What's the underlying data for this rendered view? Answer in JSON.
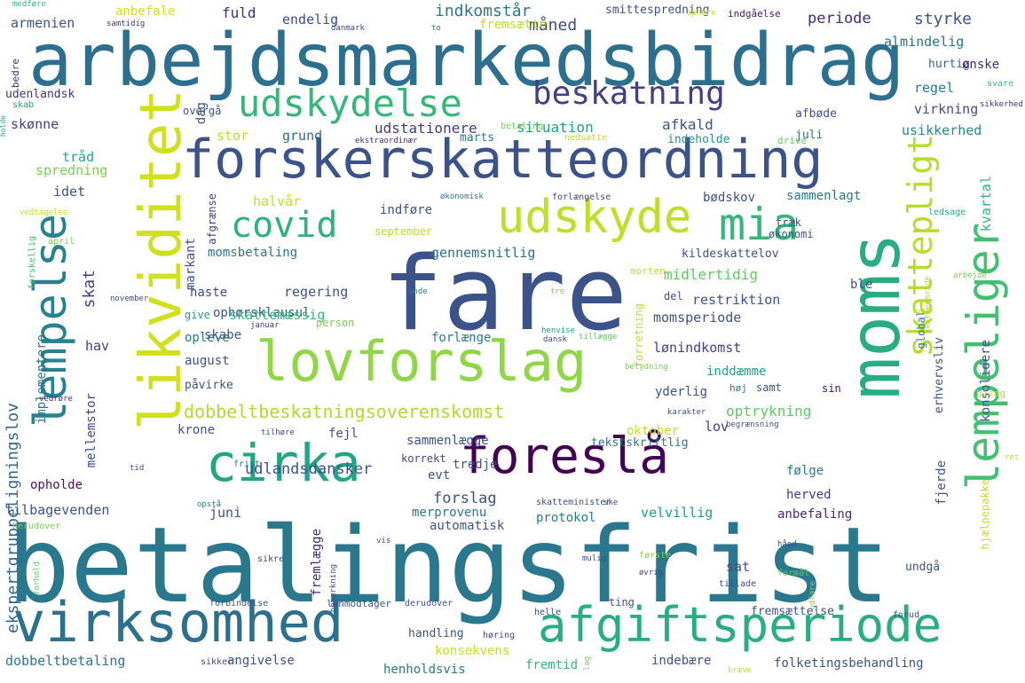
{
  "words": [
    {
      "t": "betalingsfrist",
      "c": "#2a788e"
    },
    {
      "t": "fare",
      "c": "#3b528b"
    },
    {
      "t": "arbejdsmarkedsbidrag",
      "c": "#2c6f8e"
    },
    {
      "t": "forskerskatteordning",
      "c": "#3b528b"
    },
    {
      "t": "moms",
      "c": "#27ad81"
    },
    {
      "t": "likviditet",
      "c": "#d0e11c"
    },
    {
      "t": "lovforslag",
      "c": "#8fd744"
    },
    {
      "t": "foreslå",
      "c": "#440154"
    },
    {
      "t": "cirka",
      "c": "#21a685"
    },
    {
      "t": "virksomhed",
      "c": "#2d708e"
    },
    {
      "t": "afgiftsperiode",
      "c": "#28ae80"
    },
    {
      "t": "udskyde",
      "c": "#bddf26"
    },
    {
      "t": "mia",
      "c": "#35b779"
    },
    {
      "t": "lempeliger",
      "c": "#43bf71"
    },
    {
      "t": "lempelse",
      "c": "#26828e"
    },
    {
      "t": "udskydelse",
      "c": "#35b779"
    },
    {
      "t": "beskatning",
      "c": "#433e85"
    },
    {
      "t": "covid",
      "c": "#2db27d"
    },
    {
      "t": "skattepligt",
      "c": "#b5de2b"
    },
    {
      "t": "dobbeltbeskatningsoverenskomst",
      "c": "#addc30"
    },
    {
      "t": "ekspertgruppeligningslov",
      "c": "#31688e"
    },
    {
      "t": "indkomstår",
      "c": "#2a788e"
    },
    {
      "t": "måned",
      "c": "#3e4989"
    },
    {
      "t": "styrke",
      "c": "#3b528b"
    },
    {
      "t": "periode",
      "c": "#482878"
    },
    {
      "t": "almindelig",
      "c": "#2c728e"
    },
    {
      "t": "armenien",
      "c": "#3b528b"
    },
    {
      "t": "endelig",
      "c": "#3e4a89"
    },
    {
      "t": "fuld",
      "c": "#472d7b"
    },
    {
      "t": "anbefale",
      "c": "#d2e21b"
    },
    {
      "t": "smittespredning",
      "c": "#3b528b"
    },
    {
      "t": "fremsætte",
      "c": "#bddf26"
    },
    {
      "t": "indgåelse",
      "c": "#471365"
    },
    {
      "t": "medføre",
      "c": "#35b779"
    },
    {
      "t": "samtidig",
      "c": "#46327e"
    },
    {
      "t": "danmark",
      "c": "#3e4989"
    },
    {
      "t": "to",
      "c": "#2c728e"
    },
    {
      "t": "ophøre",
      "c": "#c2df23"
    },
    {
      "t": "udenlandsk",
      "c": "#46327e"
    },
    {
      "t": "bedre",
      "c": "#472c7a"
    },
    {
      "t": "skab",
      "c": "#1f9e89"
    },
    {
      "t": "holde",
      "c": "#22a884"
    },
    {
      "t": "overgå",
      "c": "#3b528b"
    },
    {
      "t": "situation",
      "c": "#1f9e89"
    },
    {
      "t": "afkald",
      "c": "#3b528b"
    },
    {
      "t": "udstationere",
      "c": "#443983"
    },
    {
      "t": "regel",
      "c": "#287c8e"
    },
    {
      "t": "virkning",
      "c": "#3e4c8a"
    },
    {
      "t": "usikkerhed",
      "c": "#23898e"
    },
    {
      "t": "skønne",
      "c": "#433e85"
    },
    {
      "t": "stor",
      "c": "#b8de29"
    },
    {
      "t": "grund",
      "c": "#31688e"
    },
    {
      "t": "marts",
      "c": "#2a788e"
    },
    {
      "t": "nedsætte",
      "c": "#c2df23"
    },
    {
      "t": "indeholde",
      "c": "#1f958b"
    },
    {
      "t": "juli",
      "c": "#2a768e"
    },
    {
      "t": "afbøde",
      "c": "#3b528b"
    },
    {
      "t": "hurtig",
      "c": "#31688e"
    },
    {
      "t": "ønske",
      "c": "#482878"
    },
    {
      "t": "svare",
      "c": "#35b779"
    },
    {
      "t": "sikkerhed",
      "c": "#46327e"
    },
    {
      "t": "betaling",
      "c": "#7ad151"
    },
    {
      "t": "ekstraordinær",
      "c": "#482878"
    },
    {
      "t": "drive",
      "c": "#63cb5f"
    },
    {
      "t": "tråd",
      "c": "#22a884"
    },
    {
      "t": "spredning",
      "c": "#7ad151"
    },
    {
      "t": "idet",
      "c": "#3b528b"
    },
    {
      "t": "halvår",
      "c": "#bddf26"
    },
    {
      "t": "økonomisk",
      "c": "#2c728e"
    },
    {
      "t": "forlængelse",
      "c": "#3e4989"
    },
    {
      "t": "bødskov",
      "c": "#3b528b"
    },
    {
      "t": "sammenlagt",
      "c": "#2a788e"
    },
    {
      "t": "kvartal",
      "c": "#2fb47c"
    },
    {
      "t": "vedtagelse",
      "c": "#c2df23"
    },
    {
      "t": "ledsage",
      "c": "#22a884"
    },
    {
      "t": "indføre",
      "c": "#3b528b"
    },
    {
      "t": "september",
      "c": "#bddf26"
    },
    {
      "t": "afgrænse",
      "c": "#433e85"
    },
    {
      "t": "træk",
      "c": "#3e4a89"
    },
    {
      "t": "økonomi",
      "c": "#3b528b"
    },
    {
      "t": "forskellig",
      "c": "#4ac16d"
    },
    {
      "t": "april",
      "c": "#7ad151"
    },
    {
      "t": "markant",
      "c": "#3b528b"
    },
    {
      "t": "momsbetaling",
      "c": "#2a788e"
    },
    {
      "t": "gennemsnitlig",
      "c": "#2d708e"
    },
    {
      "t": "kildeskattelov",
      "c": "#3b528b"
    },
    {
      "t": "ophørsklausul",
      "c": "#3b528b"
    },
    {
      "t": "morten",
      "c": "#bddf26"
    },
    {
      "t": "skatteområde",
      "c": "#b5de2b"
    },
    {
      "t": "arbejde",
      "c": "#75d054"
    },
    {
      "t": "ble",
      "c": "#3b528b"
    },
    {
      "t": "midlertidig",
      "c": "#5ec962"
    },
    {
      "t": "skat",
      "c": "#433e85"
    },
    {
      "t": "regering",
      "c": "#3b528b"
    },
    {
      "t": "november",
      "c": "#3e4989"
    },
    {
      "t": "unde",
      "c": "#2a788e"
    },
    {
      "t": "tre",
      "c": "#7ad151"
    },
    {
      "t": "del",
      "c": "#3b528b"
    },
    {
      "t": "restriktion",
      "c": "#3b528b"
    },
    {
      "t": "haste",
      "c": "#3e4989"
    },
    {
      "t": "skattemæssig",
      "c": "#35b779"
    },
    {
      "t": "momsperiode",
      "c": "#3b528b"
    },
    {
      "t": "give",
      "c": "#1f9e89"
    },
    {
      "t": "person",
      "c": "#7ad151"
    },
    {
      "t": "forretning",
      "c": "#c2df23"
    },
    {
      "t": "global",
      "c": "#2a788e"
    },
    {
      "t": "uge",
      "c": "#c2df23"
    },
    {
      "t": "januar",
      "c": "#46327e"
    },
    {
      "t": "skabe",
      "c": "#3b528b"
    },
    {
      "t": "hav",
      "c": "#433e85"
    },
    {
      "t": "opleve",
      "c": "#2a788e"
    },
    {
      "t": "forlænge",
      "c": "#2a788e"
    },
    {
      "t": "henvise",
      "c": "#1f9e89"
    },
    {
      "t": "dansk",
      "c": "#3e4989"
    },
    {
      "t": "tillægge",
      "c": "#5ec962"
    },
    {
      "t": "lønindkomst",
      "c": "#433e85"
    },
    {
      "t": "implementere",
      "c": "#2a788e"
    },
    {
      "t": "erhvervsliv",
      "c": "#3b528b"
    },
    {
      "t": "konsolidere",
      "c": "#3b528b"
    },
    {
      "t": "august",
      "c": "#3b528b"
    },
    {
      "t": "betydning",
      "c": "#7ad151"
    },
    {
      "t": "inddæmme",
      "c": "#21a685"
    },
    {
      "t": "påvirke",
      "c": "#3b528b"
    },
    {
      "t": "yderlig",
      "c": "#3b528b"
    },
    {
      "t": "høj",
      "c": "#2a788e"
    },
    {
      "t": "samt",
      "c": "#3b528b"
    },
    {
      "t": "sin",
      "c": "#471365"
    },
    {
      "t": "bilag",
      "c": "#c2df23"
    },
    {
      "t": "vedrøre",
      "c": "#46327e"
    },
    {
      "t": "optrykning",
      "c": "#5ec962"
    },
    {
      "t": "karakter",
      "c": "#3b528b"
    },
    {
      "t": "mellemstor",
      "c": "#3e4989"
    },
    {
      "t": "krone",
      "c": "#3b528b"
    },
    {
      "t": "tilhøre",
      "c": "#3e4989"
    },
    {
      "t": "fejl",
      "c": "#3b528b"
    },
    {
      "t": "lov",
      "c": "#433e85"
    },
    {
      "t": "oktober",
      "c": "#c2df23"
    },
    {
      "t": "begrænsning",
      "c": "#3b528b"
    },
    {
      "t": "sammenlægge",
      "c": "#3b528b"
    },
    {
      "t": "tekstskriftlig",
      "c": "#2a788e"
    },
    {
      "t": "korrekt",
      "c": "#3e4989"
    },
    {
      "t": "tredje",
      "c": "#3b528b"
    },
    {
      "t": "evt",
      "c": "#3b528b"
    },
    {
      "t": "tid",
      "c": "#3e4989"
    },
    {
      "t": "frist",
      "c": "#2a788e"
    },
    {
      "t": "følge",
      "c": "#2a788e"
    },
    {
      "t": "ret",
      "c": "#c2df23"
    },
    {
      "t": "fjerde",
      "c": "#3b528b"
    },
    {
      "t": "opholde",
      "c": "#471365"
    },
    {
      "t": "udlandsdansker",
      "c": "#3b528b"
    },
    {
      "t": "hjælpepakke",
      "c": "#c2df23"
    },
    {
      "t": "forslag",
      "c": "#3b528b"
    },
    {
      "t": "herved",
      "c": "#443983"
    },
    {
      "t": "tilbagevenden",
      "c": "#3b528b"
    },
    {
      "t": "juni",
      "c": "#3b528b"
    },
    {
      "t": "merprovenu",
      "c": "#2a788e"
    },
    {
      "t": "skatteminister",
      "c": "#3e4989"
    },
    {
      "t": "ske",
      "c": "#3e4989"
    },
    {
      "t": "velvillig",
      "c": "#1f9e89"
    },
    {
      "t": "opstå",
      "c": "#2a788e"
    },
    {
      "t": "protokol",
      "c": "#2a788e"
    },
    {
      "t": "anbefaling",
      "c": "#482878"
    },
    {
      "t": "herudover",
      "c": "#7ad151"
    },
    {
      "t": "bemærkning",
      "c": "#3b528b"
    },
    {
      "t": "fremlægge",
      "c": "#482878"
    },
    {
      "t": "automatisk",
      "c": "#3b528b"
    },
    {
      "t": "vis",
      "c": "#3b528b"
    },
    {
      "t": "hånd",
      "c": "#3e4989"
    },
    {
      "t": "undgå",
      "c": "#3b528b"
    },
    {
      "t": "sat",
      "c": "#3b528b"
    },
    {
      "t": "sikre",
      "c": "#3e4989"
    },
    {
      "t": "mulig",
      "c": "#3e4989"
    },
    {
      "t": "første",
      "c": "#7ad151"
    },
    {
      "t": "formål",
      "c": "#5ec962"
    },
    {
      "t": "forhold",
      "c": "#5ec962"
    },
    {
      "t": "øvrig",
      "c": "#3e4989"
    },
    {
      "t": "tillade",
      "c": "#3e4989"
    },
    {
      "t": "udføre",
      "c": "#7ad151"
    },
    {
      "t": "forbindelse",
      "c": "#3b528b"
    },
    {
      "t": "lønmodtager",
      "c": "#3b528b"
    },
    {
      "t": "derudover",
      "c": "#3b528b"
    },
    {
      "t": "helle",
      "c": "#3e4989"
    },
    {
      "t": "ting",
      "c": "#3b528b"
    },
    {
      "t": "forud",
      "c": "#3b528b"
    },
    {
      "t": "fremsættelse",
      "c": "#3b528b"
    },
    {
      "t": "handling",
      "c": "#3b528b"
    },
    {
      "t": "høring",
      "c": "#3e4989"
    },
    {
      "t": "konsekvens",
      "c": "#c2df23"
    },
    {
      "t": "dobbeltbetaling",
      "c": "#2a788e"
    },
    {
      "t": "angivelse",
      "c": "#3b528b"
    },
    {
      "t": "henholdsvis",
      "c": "#2a788e"
    },
    {
      "t": "fremtid",
      "c": "#35b779"
    },
    {
      "t": "indebære",
      "c": "#3b528b"
    },
    {
      "t": "folketingsbehandling",
      "c": "#3b528b"
    },
    {
      "t": "sikker",
      "c": "#3e4989"
    },
    {
      "t": "lag",
      "c": "#7ad151"
    },
    {
      "t": "kræve",
      "c": "#c2df23"
    },
    {
      "t": "dag",
      "c": "#3b528b"
    }
  ]
}
